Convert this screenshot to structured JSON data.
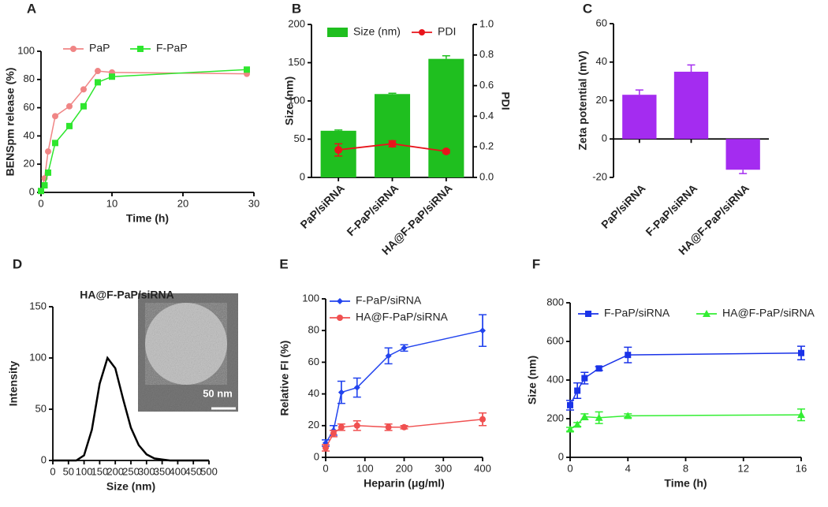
{
  "chart_data": [
    {
      "type": "line",
      "label": "A",
      "xlabel": "Time (h)",
      "ylabel": "BENSpm release (%)",
      "x": [
        0,
        0.5,
        1,
        2,
        4,
        6,
        8,
        10,
        29
      ],
      "xlim": [
        0,
        30
      ],
      "xticks": [
        0,
        10,
        20,
        30
      ],
      "ylim": [
        0,
        100
      ],
      "yticks": [
        0,
        20,
        40,
        60,
        80,
        100
      ],
      "series": [
        {
          "name": "PaP",
          "color": "#f08585",
          "marker": "circle",
          "values": [
            1,
            10,
            29,
            54,
            61,
            73,
            86,
            85,
            84
          ]
        },
        {
          "name": "F-PaP",
          "color": "#2ee62e",
          "marker": "square",
          "values": [
            1,
            5,
            14,
            35,
            47,
            61,
            78,
            82,
            87
          ]
        }
      ]
    },
    {
      "type": "bar",
      "label": "B",
      "ylabel": "Size (nm)",
      "y2label": "PDI",
      "categories": [
        "PaP/siRNA",
        "F-PaP/siRNA",
        "HA@F-PaP/siRNA"
      ],
      "ylim": [
        0,
        200
      ],
      "yticks": [
        0,
        50,
        100,
        150,
        200
      ],
      "y2lim": [
        0,
        1
      ],
      "y2ticks": [
        {
          "value": 0,
          "label": "0.0"
        },
        0.2,
        0.4,
        0.6,
        0.8,
        {
          "value": 1,
          "label": "1.0"
        }
      ],
      "series": [
        {
          "name": "Size (nm)",
          "color": "#1fbf1f",
          "values": [
            61,
            109,
            155
          ],
          "errors": [
            1,
            1,
            4
          ]
        },
        {
          "name": "PDI",
          "color": "#e8141b",
          "axis": "y2",
          "marker": "circle",
          "values": [
            0.18,
            0.22,
            0.17
          ],
          "errors": [
            0.04,
            0.02,
            0.01
          ]
        }
      ]
    },
    {
      "type": "bar",
      "label": "C",
      "ylabel": "Zeta potential (mV)",
      "categories": [
        "PaP/siRNA",
        "F-PaP/siRNA",
        "HA@F-PaP/siRNA"
      ],
      "ylim": [
        -20,
        60
      ],
      "yticks": [
        -20,
        0,
        20,
        40,
        60
      ],
      "color": "#a42cf0",
      "values": [
        23,
        35,
        -16
      ],
      "errors": [
        2.5,
        3.5,
        2
      ]
    },
    {
      "type": "line",
      "label": "D",
      "title": "HA@F-PaP/siRNA",
      "xlabel": "Size (nm)",
      "ylabel": "Intensity",
      "inset_label": "50 nm",
      "x": [
        0,
        25,
        50,
        75,
        100,
        125,
        150,
        175,
        200,
        225,
        250,
        275,
        300,
        325,
        350,
        375,
        400,
        425,
        450,
        475,
        500
      ],
      "values": [
        0,
        0,
        0,
        0,
        5,
        30,
        75,
        100,
        90,
        60,
        32,
        15,
        6,
        2,
        1,
        0,
        0,
        0,
        0,
        0,
        0
      ],
      "color": "#000000",
      "xlim": [
        0,
        500
      ],
      "xticks": [
        0,
        50,
        100,
        150,
        200,
        250,
        300,
        350,
        400,
        450,
        500
      ],
      "ylim": [
        0,
        150
      ],
      "yticks": [
        0,
        50,
        100,
        150
      ]
    },
    {
      "type": "line",
      "label": "E",
      "xlabel": "Heparin (μg/ml)",
      "ylabel": "Relative FI (%)",
      "x": [
        0,
        20,
        40,
        80,
        160,
        200,
        400
      ],
      "xlim": [
        0,
        400
      ],
      "xticks": [
        0,
        100,
        200,
        300,
        400
      ],
      "ylim": [
        0,
        100
      ],
      "yticks": [
        0,
        20,
        40,
        60,
        80,
        100
      ],
      "series": [
        {
          "name": "F-PaP/siRNA",
          "color": "#2244ee",
          "marker": "diamond",
          "values": [
            9,
            17,
            41,
            44,
            64,
            69,
            80
          ],
          "errors": [
            2,
            3,
            7,
            6,
            5,
            2,
            10
          ]
        },
        {
          "name": "HA@F-PaP/siRNA",
          "color": "#f05050",
          "marker": "circle",
          "values": [
            6,
            15,
            19,
            20,
            19,
            19,
            24
          ],
          "errors": [
            2,
            2,
            2,
            3,
            2,
            1,
            4
          ]
        }
      ]
    },
    {
      "type": "line",
      "label": "F",
      "xlabel": "Time (h)",
      "ylabel": "Size (nm)",
      "x": [
        0,
        0.5,
        1,
        2,
        4,
        16
      ],
      "xlim": [
        0,
        16
      ],
      "xticks": [
        0,
        4,
        8,
        12,
        16
      ],
      "ylim": [
        0,
        800
      ],
      "yticks": [
        0,
        200,
        400,
        600,
        800
      ],
      "series": [
        {
          "name": "F-PaP/siRNA",
          "color": "#1a33e8",
          "marker": "square",
          "values": [
            270,
            345,
            410,
            460,
            530,
            540
          ],
          "errors": [
            25,
            40,
            30,
            10,
            40,
            35
          ]
        },
        {
          "name": "HA@F-PaP/siRNA",
          "color": "#33ee33",
          "marker": "triangle",
          "values": [
            145,
            170,
            210,
            205,
            215,
            220
          ],
          "errors": [
            10,
            10,
            15,
            30,
            10,
            30
          ]
        }
      ]
    }
  ]
}
